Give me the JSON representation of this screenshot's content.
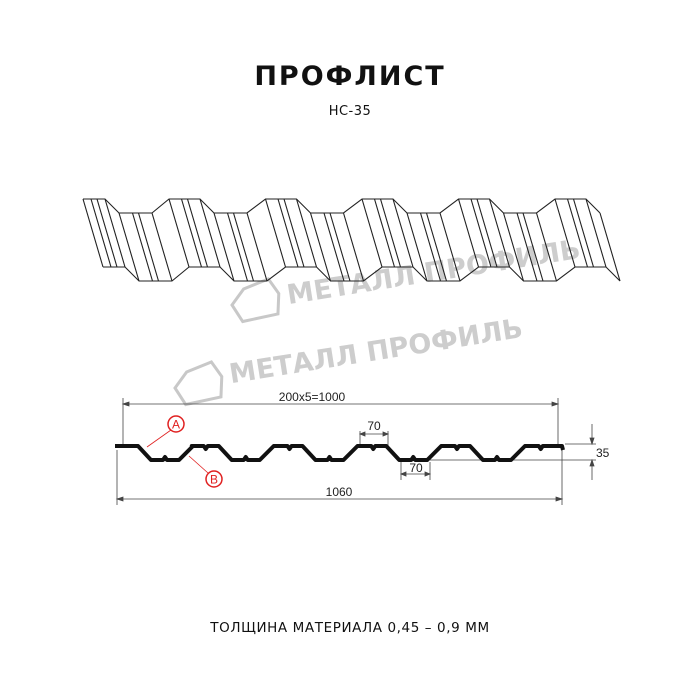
{
  "header": {
    "title": "ПРОФЛИСТ",
    "model": "НС-35"
  },
  "watermark": {
    "text": "МЕТАЛЛ ПРОФИЛЬ",
    "color": "#bdbdbd"
  },
  "drawing": {
    "pitch_dimension": "200x5=1000",
    "top_width_dimension": "70",
    "bottom_width_dimension": "70",
    "height_dimension": "35",
    "total_width_dimension": "1060",
    "marker_a": "A",
    "marker_b": "B",
    "profile_color": "#111111",
    "marker_color": "#e02020"
  },
  "footer": {
    "thickness": "ТОЛЩИНА МАТЕРИАЛА 0,45 – 0,9 ММ"
  }
}
